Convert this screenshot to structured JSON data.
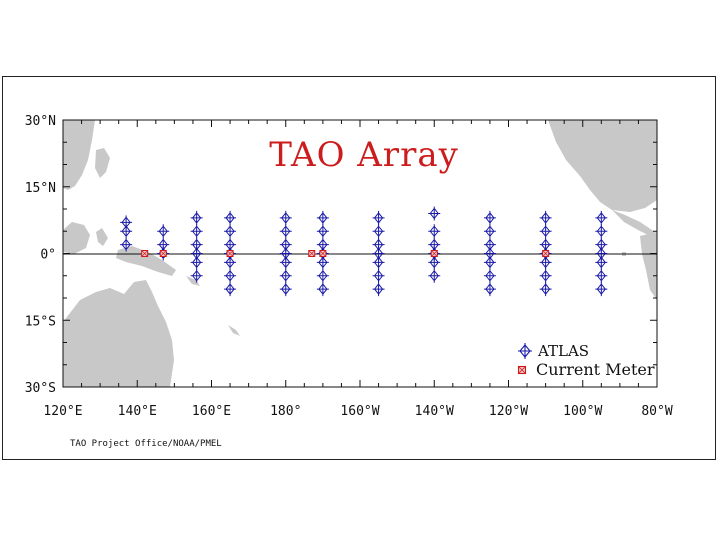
{
  "map": {
    "title": "TAO Array",
    "credit": "TAO Project Office/NOAA/PMEL",
    "lon_range": [
      120,
      280
    ],
    "lat_range": [
      -30,
      30
    ],
    "lat_labels": [
      {
        "lat": 30,
        "text": "30°N"
      },
      {
        "lat": 15,
        "text": "15°N"
      },
      {
        "lat": 0,
        "text": "0°"
      },
      {
        "lat": -15,
        "text": "15°S"
      },
      {
        "lat": -30,
        "text": "30°S"
      }
    ],
    "lon_labels": [
      {
        "lon": 120,
        "text": "120°E"
      },
      {
        "lon": 140,
        "text": "140°E"
      },
      {
        "lon": 160,
        "text": "160°E"
      },
      {
        "lon": 180,
        "text": "180°"
      },
      {
        "lon": 200,
        "text": "160°W"
      },
      {
        "lon": 220,
        "text": "140°W"
      },
      {
        "lon": 240,
        "text": "120°W"
      },
      {
        "lon": 260,
        "text": "100°W"
      },
      {
        "lon": 280,
        "text": "80°W"
      }
    ],
    "legend": {
      "atlas_label": "ATLAS",
      "current_meter_label": "Current Meter"
    },
    "colors": {
      "land": "#c8c8c8",
      "atlas": "#1a1aa8",
      "current_meter": "#cc1c1c",
      "title": "#cc1c1c"
    },
    "atlas_moorings": [
      {
        "lon": 137,
        "lats": [
          7,
          5,
          2
        ]
      },
      {
        "lon": 147,
        "lats": [
          5,
          2,
          0
        ]
      },
      {
        "lon": 156,
        "lats": [
          8,
          5,
          2,
          0,
          -2,
          -5
        ]
      },
      {
        "lon": 165,
        "lats": [
          8,
          5,
          2,
          0,
          -2,
          -5,
          -8
        ]
      },
      {
        "lon": 180,
        "lats": [
          8,
          5,
          2,
          0,
          -2,
          -5,
          -8
        ]
      },
      {
        "lon": 190,
        "lats": [
          8,
          5,
          2,
          0,
          -2,
          -5,
          -8
        ]
      },
      {
        "lon": 205,
        "lats": [
          8,
          5,
          2,
          0,
          -2,
          -5,
          -8
        ]
      },
      {
        "lon": 220,
        "lats": [
          9,
          5,
          2,
          0,
          -2,
          -5
        ]
      },
      {
        "lon": 235,
        "lats": [
          8,
          5,
          2,
          0,
          -2,
          -5,
          -8
        ]
      },
      {
        "lon": 250,
        "lats": [
          8,
          5,
          2,
          0,
          -2,
          -5,
          -8
        ]
      },
      {
        "lon": 265,
        "lats": [
          8,
          5,
          2,
          0,
          -2,
          -5,
          -8
        ]
      }
    ],
    "current_meters": [
      {
        "lon": 147,
        "lat": 0
      },
      {
        "lon": 165,
        "lat": 0
      },
      {
        "lon": 190,
        "lat": 0
      },
      {
        "lon": 220,
        "lat": 0
      },
      {
        "lon": 250,
        "lat": 0
      }
    ],
    "current_meter_extra": [
      {
        "lon": 142,
        "lat": 0
      },
      {
        "lon": 187,
        "lat": 0
      }
    ]
  }
}
